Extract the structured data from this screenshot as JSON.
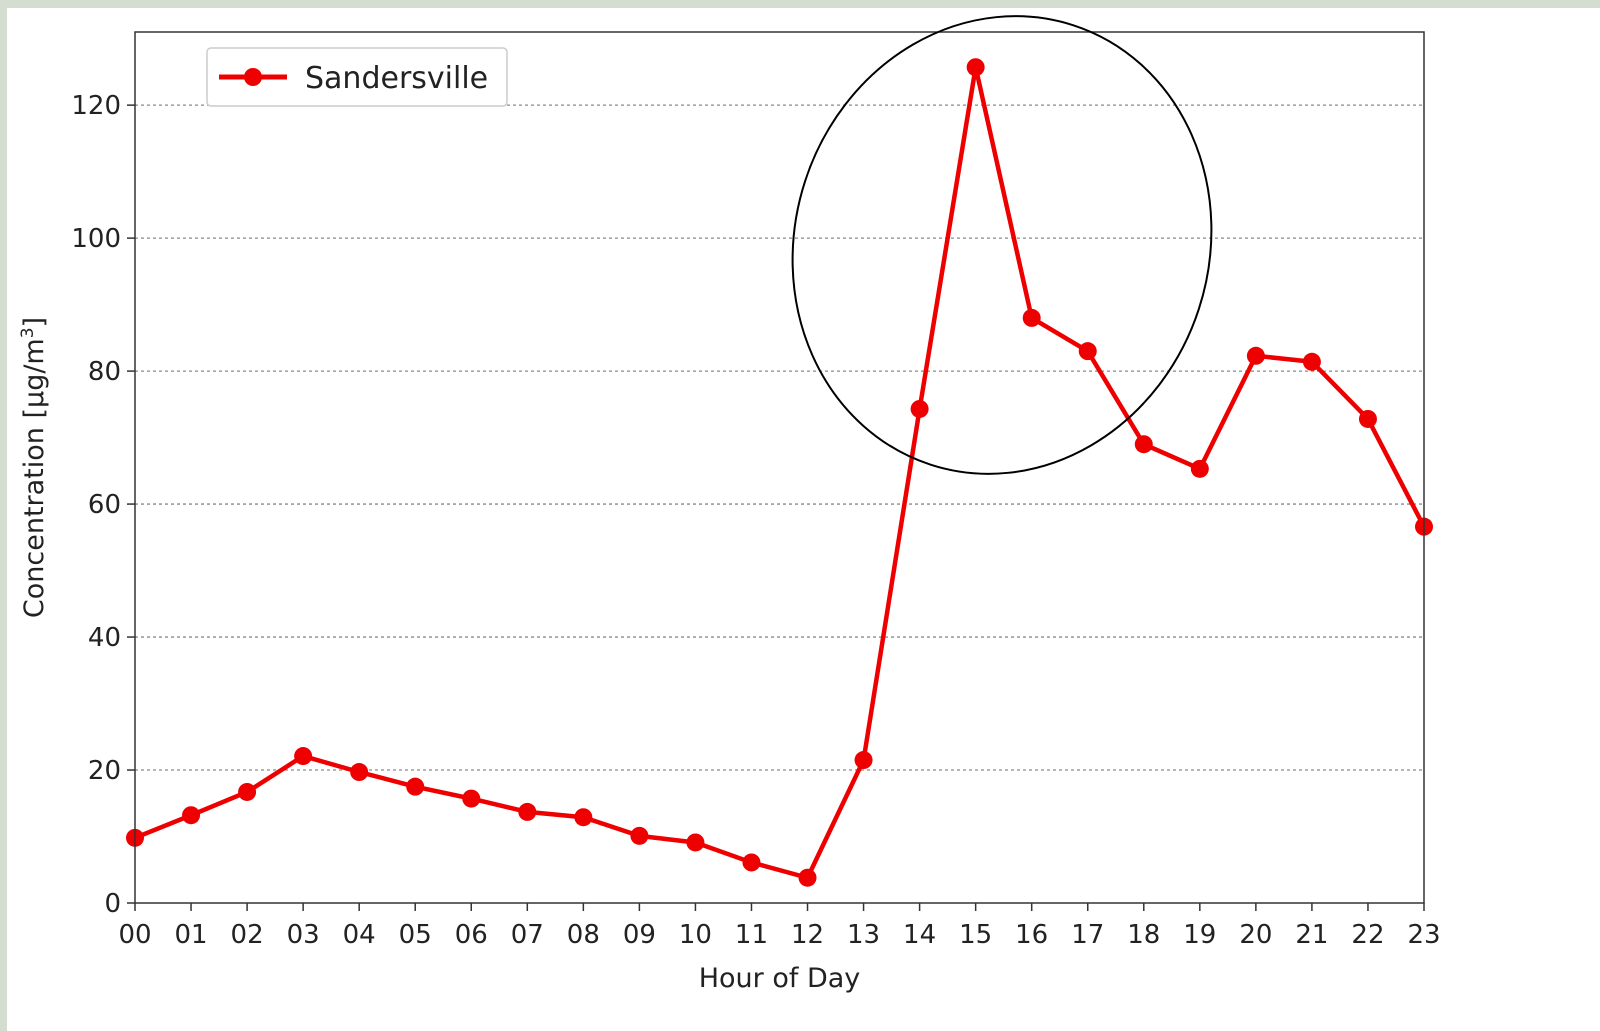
{
  "chart_data": {
    "type": "line",
    "xlabel": "Hour of Day",
    "ylabel": "Concentration [µg/m",
    "ylabel_sup": "3",
    "ylabel_end": "]",
    "ylim": [
      0,
      131
    ],
    "yticks": [
      0,
      20,
      40,
      60,
      80,
      100,
      120
    ],
    "categories": [
      "00",
      "01",
      "02",
      "03",
      "04",
      "05",
      "06",
      "07",
      "08",
      "09",
      "10",
      "11",
      "12",
      "13",
      "14",
      "15",
      "16",
      "17",
      "18",
      "19",
      "20",
      "21",
      "22",
      "23"
    ],
    "grid": "horizontal dashed",
    "legend_position": "top-left",
    "series": [
      {
        "name": "Sandersville",
        "color": "#ee0000",
        "marker": "circle",
        "values": [
          9.8,
          13.2,
          16.7,
          22.1,
          19.7,
          17.5,
          15.7,
          13.7,
          12.9,
          10.1,
          9.1,
          6.1,
          3.8,
          21.5,
          74.3,
          125.7,
          88.0,
          83.0,
          69.0,
          65.3,
          82.3,
          81.4,
          72.8,
          56.6
        ]
      }
    ],
    "annotations": [
      {
        "type": "ellipse",
        "color": "#000000",
        "around_categories": [
          "14",
          "15",
          "16",
          "17"
        ]
      }
    ]
  }
}
